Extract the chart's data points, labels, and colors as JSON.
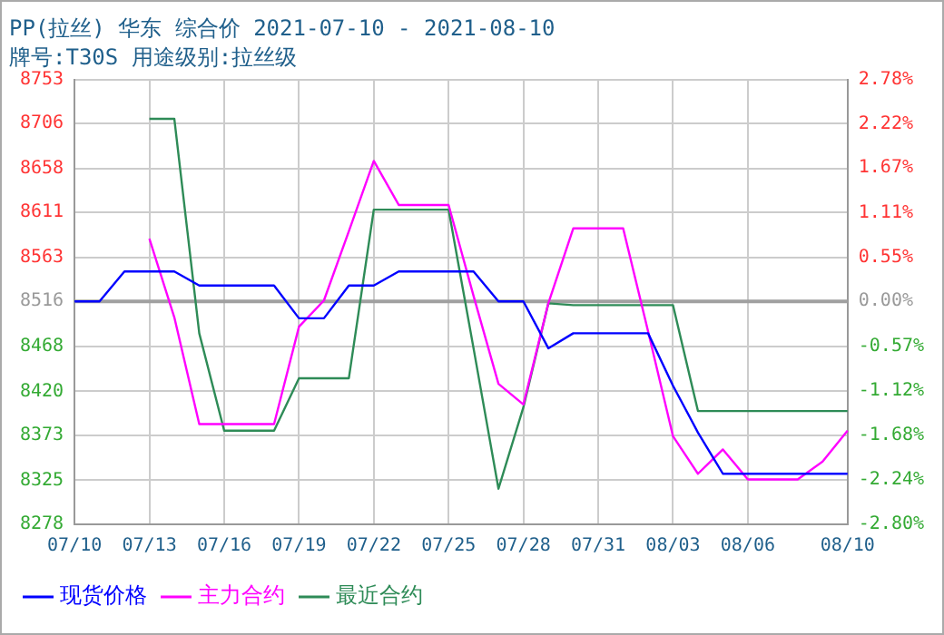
{
  "chart_data": {
    "type": "line",
    "title": "PP(拉丝) 华东 综合价 2021-07-10 - 2021-08-10",
    "subtitle": "牌号:T30S 用途级别:拉丝级",
    "categories": [
      "07/10",
      null,
      null,
      "07/13",
      null,
      null,
      "07/16",
      null,
      null,
      "07/19",
      null,
      null,
      "07/22",
      null,
      null,
      "07/25",
      null,
      null,
      "07/28",
      null,
      null,
      "07/31",
      null,
      null,
      "08/03",
      null,
      null,
      "08/06",
      null,
      null,
      null,
      "08/10"
    ],
    "series": [
      {
        "name": "现货价格",
        "color": "#0000ff",
        "values": [
          8516,
          8516,
          8548,
          8548,
          8548,
          8533,
          8533,
          8533,
          8533,
          8498,
          8498,
          8533,
          8533,
          8548,
          8548,
          8548,
          8548,
          8516,
          8516,
          8466,
          8482,
          8482,
          8482,
          8482,
          8426,
          8376,
          8332,
          8332,
          8332,
          8332,
          8332,
          8332
        ]
      },
      {
        "name": "主力合约",
        "color": "#ff00ff",
        "values": [
          null,
          null,
          null,
          8583,
          8499,
          8385,
          8385,
          8385,
          8385,
          8489,
          8517,
          8591,
          8666,
          8619,
          8619,
          8619,
          8522,
          8428,
          8406,
          8514,
          8594,
          8594,
          8594,
          8484,
          8372,
          8332,
          8358,
          8326,
          8326,
          8326,
          8345,
          8378
        ]
      },
      {
        "name": "最近合约",
        "color": "#2e8b57",
        "values": [
          null,
          null,
          null,
          8711,
          8711,
          8482,
          8378,
          8378,
          8378,
          8434,
          8434,
          8434,
          8614,
          8614,
          8614,
          8614,
          8466,
          8316,
          8403,
          8514,
          8512,
          8512,
          8512,
          8512,
          8512,
          8399,
          8399,
          8399,
          8399,
          8399,
          8399,
          8399
        ]
      }
    ],
    "ylim": [
      8278,
      8753
    ],
    "yticks": [
      8278,
      8325,
      8373,
      8420,
      8468,
      8516,
      8563,
      8611,
      8658,
      8706,
      8753
    ],
    "y2lim": [
      -2.8,
      2.78
    ],
    "y2ticks": [
      {
        "value": -2.8,
        "label": "-2.80%"
      },
      {
        "value": -2.24,
        "label": "-2.24%"
      },
      {
        "value": -1.68,
        "label": "-1.68%"
      },
      {
        "value": -1.12,
        "label": "-1.12%"
      },
      {
        "value": -0.57,
        "label": "-0.57%"
      },
      {
        "value": 0,
        "label": "0.00%"
      },
      {
        "value": 0.55,
        "label": "0.55%"
      },
      {
        "value": 1.11,
        "label": "1.11%"
      },
      {
        "value": 1.67,
        "label": "1.67%"
      },
      {
        "value": 2.22,
        "label": "2.22%"
      },
      {
        "value": 2.78,
        "label": "2.78%"
      }
    ],
    "ref_lines": [
      {
        "axis": "y",
        "value": 8516,
        "color": "#a0a0a0"
      }
    ],
    "grid": true,
    "legend": "bottom",
    "marker": "none",
    "line_style": "solid"
  }
}
